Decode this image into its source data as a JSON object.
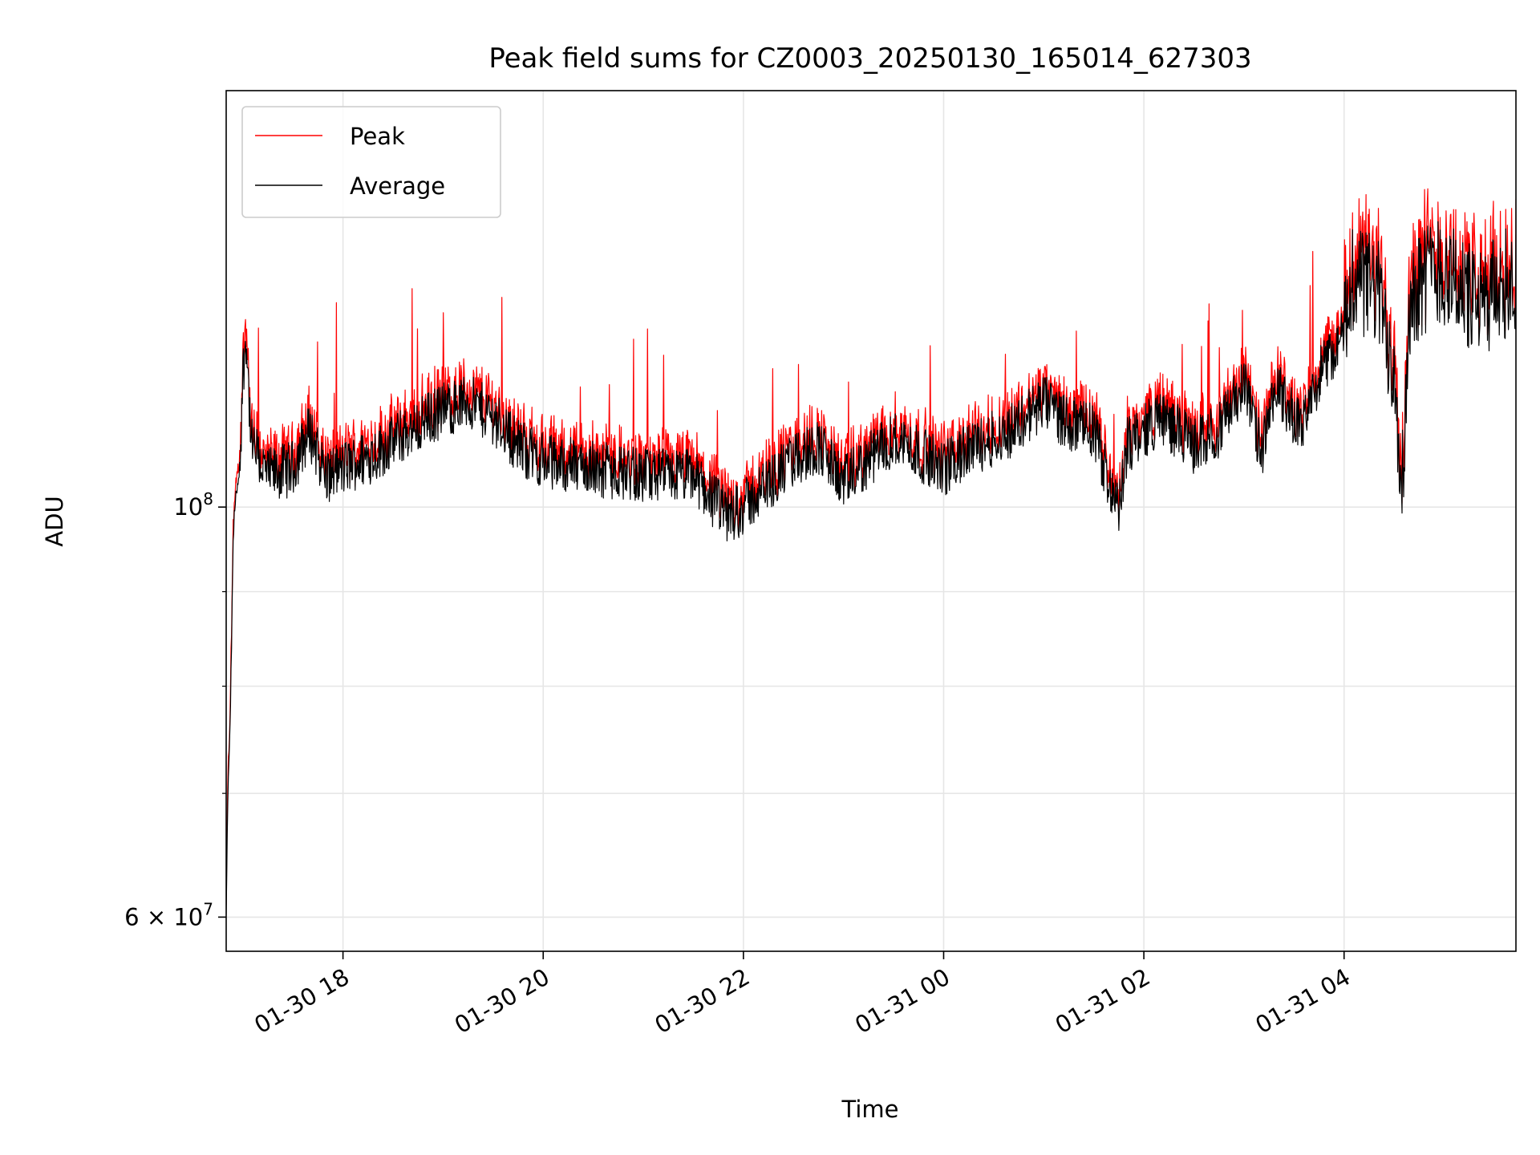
{
  "chart_data": {
    "type": "line",
    "title": "Peak field sums for CZ0003_20250130_165014_627303",
    "xlabel": "Time",
    "ylabel": "ADU",
    "y_scale": "log",
    "x_range": [
      "2025-01-30 16:50",
      "2025-01-31 05:43"
    ],
    "ylim": [
      57500000,
      168000000
    ],
    "grid": true,
    "legend_position": "top-left",
    "x_ticks": [
      {
        "label": "01-30 18",
        "value": "2025-01-30 18:00"
      },
      {
        "label": "01-30 20",
        "value": "2025-01-30 20:00"
      },
      {
        "label": "01-30 22",
        "value": "2025-01-30 22:00"
      },
      {
        "label": "01-31 00",
        "value": "2025-01-31 00:00"
      },
      {
        "label": "01-31 02",
        "value": "2025-01-31 02:00"
      },
      {
        "label": "01-31 04",
        "value": "2025-01-31 04:00"
      }
    ],
    "y_major_ticks": [
      {
        "label": "10",
        "exp": "8",
        "prefix": "",
        "value": 100000000
      },
      {
        "label": "10",
        "exp": "7",
        "prefix": "6 × ",
        "value": 60000000
      }
    ],
    "y_minor_ticks": [
      70000000,
      80000000,
      90000000
    ],
    "series": [
      {
        "name": "Peak",
        "color": "#ff0000"
      },
      {
        "name": "Average",
        "color": "#000000"
      }
    ],
    "average_series": [
      [
        "2025-01-30 16:50",
        60000000
      ],
      [
        "2025-01-30 16:51",
        70000000
      ],
      [
        "2025-01-30 16:52",
        74000000
      ],
      [
        "2025-01-30 16:53",
        82000000
      ],
      [
        "2025-01-30 16:54",
        94000000
      ],
      [
        "2025-01-30 16:55",
        100000000
      ],
      [
        "2025-01-30 16:58",
        104000000
      ],
      [
        "2025-01-30 17:00",
        118000000
      ],
      [
        "2025-01-30 17:02",
        124000000
      ],
      [
        "2025-01-30 17:05",
        108000000
      ],
      [
        "2025-01-30 17:15",
        104000000
      ],
      [
        "2025-01-30 17:30",
        105000000
      ],
      [
        "2025-01-30 17:40",
        110000000
      ],
      [
        "2025-01-30 17:50",
        104000000
      ],
      [
        "2025-01-30 18:00",
        105000000
      ],
      [
        "2025-01-30 18:20",
        107000000
      ],
      [
        "2025-01-30 18:40",
        110000000
      ],
      [
        "2025-01-30 19:00",
        113000000
      ],
      [
        "2025-01-30 19:15",
        114000000
      ],
      [
        "2025-01-30 19:30",
        112000000
      ],
      [
        "2025-01-30 19:45",
        108000000
      ],
      [
        "2025-01-30 20:00",
        106000000
      ],
      [
        "2025-01-30 20:30",
        105000000
      ],
      [
        "2025-01-30 21:00",
        104000000
      ],
      [
        "2025-01-30 21:30",
        104000000
      ],
      [
        "2025-01-30 21:50",
        99000000
      ],
      [
        "2025-01-30 22:00",
        100000000
      ],
      [
        "2025-01-30 22:15",
        103000000
      ],
      [
        "2025-01-30 22:30",
        106000000
      ],
      [
        "2025-01-30 22:45",
        108000000
      ],
      [
        "2025-01-30 23:00",
        103000000
      ],
      [
        "2025-01-30 23:15",
        106000000
      ],
      [
        "2025-01-30 23:30",
        109000000
      ],
      [
        "2025-01-30 23:45",
        107000000
      ],
      [
        "2025-01-31 00:00",
        105000000
      ],
      [
        "2025-01-31 00:20",
        108000000
      ],
      [
        "2025-01-31 00:40",
        110000000
      ],
      [
        "2025-01-31 01:00",
        114000000
      ],
      [
        "2025-01-31 01:15",
        111000000
      ],
      [
        "2025-01-31 01:30",
        110000000
      ],
      [
        "2025-01-31 01:45",
        99000000
      ],
      [
        "2025-01-31 01:50",
        108000000
      ],
      [
        "2025-01-31 02:10",
        112000000
      ],
      [
        "2025-01-31 02:30",
        108000000
      ],
      [
        "2025-01-31 02:45",
        110000000
      ],
      [
        "2025-01-31 03:00",
        117000000
      ],
      [
        "2025-01-31 03:10",
        107000000
      ],
      [
        "2025-01-31 03:20",
        116000000
      ],
      [
        "2025-01-31 03:35",
        110000000
      ],
      [
        "2025-01-31 03:45",
        118000000
      ],
      [
        "2025-01-31 04:00",
        124000000
      ],
      [
        "2025-01-31 04:05",
        134000000
      ],
      [
        "2025-01-31 04:20",
        131000000
      ],
      [
        "2025-01-31 04:30",
        119000000
      ],
      [
        "2025-01-31 04:35",
        104000000
      ],
      [
        "2025-01-31 04:40",
        131000000
      ],
      [
        "2025-01-31 04:55",
        135000000
      ],
      [
        "2025-01-31 05:10",
        132000000
      ],
      [
        "2025-01-31 05:20",
        128000000
      ],
      [
        "2025-01-31 05:30",
        131000000
      ],
      [
        "2025-01-31 05:40",
        133000000
      ]
    ]
  }
}
